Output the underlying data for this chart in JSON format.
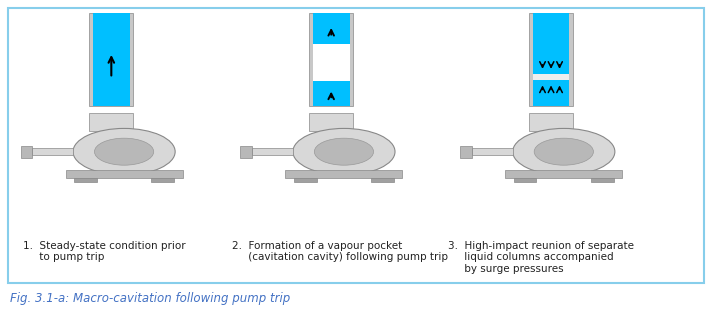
{
  "fig_width": 7.12,
  "fig_height": 3.26,
  "dpi": 100,
  "background_color": "#ffffff",
  "border_color": "#87CEEB",
  "pipe_color_blue": "#00BFFF",
  "pipe_color_gray": "#C8C8C8",
  "pipe_color_white": "#FFFFFF",
  "pump_color_light": "#D8D8D8",
  "pump_color_mid": "#B8B8B8",
  "pump_color_dark": "#A0A0A0",
  "caption_color": "#4472C4",
  "labels": [
    "1.  Steady-state condition prior\n     to pump trip",
    "2.  Formation of a vapour pocket\n     (cavitation cavity) following pump trip",
    "3.  High-impact reunion of separate\n     liquid columns accompanied\n     by surge pressures"
  ],
  "caption": "Fig. 3.1-a: Macro-cavitation following pump trip",
  "label_fontsize": 7.5,
  "caption_fontsize": 8.5
}
